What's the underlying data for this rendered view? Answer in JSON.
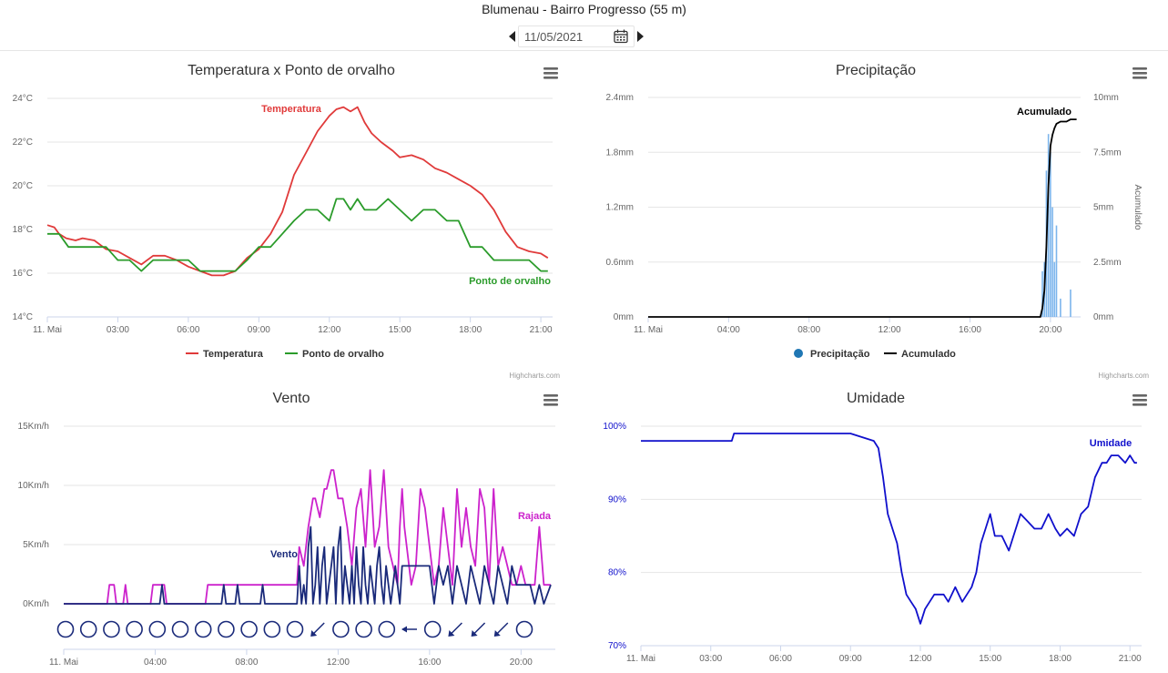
{
  "page": {
    "title": "Blumenau - Bairro Progresso (55 m)",
    "date": "11/05/2021",
    "credit": "Highcharts.com"
  },
  "icons": {
    "prev": "caret-left-icon",
    "next": "caret-right-icon",
    "calendar": "calendar-icon",
    "menu": "hamburger-menu-icon"
  },
  "chart_data": [
    {
      "type": "line",
      "title": "Temperatura x Ponto de orvalho",
      "x_ticks": [
        "11. Mai",
        "03:00",
        "06:00",
        "09:00",
        "12:00",
        "15:00",
        "18:00",
        "21:00"
      ],
      "x_tick_hours": [
        0,
        3,
        6,
        9,
        12,
        15,
        18,
        21
      ],
      "xlim": [
        0,
        21.5
      ],
      "y_ticks": [
        "14°C",
        "16°C",
        "18°C",
        "20°C",
        "22°C",
        "24°C"
      ],
      "ylim": [
        14,
        24
      ],
      "legend": [
        "Temperatura",
        "Ponto de orvalho"
      ],
      "legend_position": "bottom",
      "grid": true,
      "series": [
        {
          "name": "Temperatura",
          "color": "#e03a3a",
          "x": [
            0,
            0.3,
            0.5,
            0.8,
            1.2,
            1.5,
            2,
            2.5,
            3,
            3.5,
            4,
            4.5,
            5,
            5.5,
            6,
            6.5,
            7,
            7.5,
            8,
            8.5,
            9,
            9.5,
            10,
            10.5,
            11,
            11.5,
            12,
            12.3,
            12.6,
            12.9,
            13.2,
            13.5,
            13.8,
            14.2,
            14.7,
            15,
            15.5,
            16,
            16.5,
            17,
            17.5,
            18,
            18.5,
            19,
            19.5,
            20,
            20.5,
            21,
            21.3
          ],
          "y": [
            18.2,
            18.1,
            17.8,
            17.6,
            17.5,
            17.6,
            17.5,
            17.1,
            17,
            16.7,
            16.4,
            16.8,
            16.8,
            16.6,
            16.3,
            16.1,
            15.9,
            15.9,
            16.1,
            16.7,
            17.1,
            17.8,
            18.8,
            20.5,
            21.5,
            22.5,
            23.2,
            23.5,
            23.6,
            23.4,
            23.6,
            22.9,
            22.4,
            22.0,
            21.6,
            21.3,
            21.4,
            21.2,
            20.8,
            20.6,
            20.3,
            20.0,
            19.6,
            18.9,
            17.9,
            17.2,
            17.0,
            16.9,
            16.7
          ]
        },
        {
          "name": "Ponto de orvalho",
          "color": "#2a9b2a",
          "x": [
            0,
            0.5,
            0.9,
            1.5,
            2,
            2.5,
            3,
            3.5,
            4,
            4.5,
            5,
            5.5,
            6,
            6.5,
            7,
            7.5,
            8,
            8.5,
            9,
            9.5,
            10,
            10.5,
            11,
            11.5,
            12,
            12.3,
            12.6,
            12.9,
            13.2,
            13.5,
            14,
            14.5,
            15,
            15.5,
            16,
            16.5,
            17,
            17.5,
            18,
            18.5,
            19,
            19.5,
            20,
            20.5,
            21,
            21.3
          ],
          "y": [
            17.8,
            17.8,
            17.2,
            17.2,
            17.2,
            17.2,
            16.6,
            16.6,
            16.1,
            16.6,
            16.6,
            16.6,
            16.6,
            16.1,
            16.1,
            16.1,
            16.1,
            16.6,
            17.2,
            17.2,
            17.8,
            18.4,
            18.9,
            18.9,
            18.4,
            19.4,
            19.4,
            18.9,
            19.4,
            18.9,
            18.9,
            19.4,
            18.9,
            18.4,
            18.9,
            18.9,
            18.4,
            18.4,
            17.2,
            17.2,
            16.6,
            16.6,
            16.6,
            16.6,
            16.1,
            16.1
          ]
        }
      ],
      "annotations": [
        "Temperatura",
        "Ponto de orvalho"
      ]
    },
    {
      "type": "bar",
      "title": "Precipitação",
      "x_ticks": [
        "11. Mai",
        "04:00",
        "08:00",
        "12:00",
        "16:00",
        "20:00"
      ],
      "x_tick_hours": [
        0,
        4,
        8,
        12,
        16,
        20
      ],
      "xlim": [
        0,
        21.5
      ],
      "y_ticks": [
        "0mm",
        "0.6mm",
        "1.2mm",
        "1.8mm",
        "2.4mm"
      ],
      "ylim": [
        0,
        2.4
      ],
      "y2_ticks": [
        "0mm",
        "2.5mm",
        "5mm",
        "7.5mm",
        "10mm"
      ],
      "y2lim": [
        0,
        10
      ],
      "y2_label": "Acumulado",
      "legend": [
        "Precipitação",
        "Acumulado"
      ],
      "legend_position": "bottom",
      "grid": true,
      "series": [
        {
          "name": "Precipitação",
          "color": "#7cb5ec",
          "x": [
            19.6,
            19.7,
            19.8,
            19.9,
            20.0,
            20.1,
            20.2,
            20.3,
            20.5,
            21.0
          ],
          "values": [
            0.5,
            0.6,
            1.6,
            2.0,
            1.8,
            1.2,
            0.6,
            1.0,
            0.2,
            0.3
          ]
        },
        {
          "name": "Acumulado",
          "color": "#000000",
          "x": [
            0,
            19.5,
            19.6,
            19.7,
            19.8,
            19.9,
            20.0,
            20.1,
            20.2,
            20.3,
            20.5,
            20.8,
            21.0,
            21.3
          ],
          "y": [
            0,
            0,
            0.4,
            1.2,
            3.2,
            6.0,
            7.8,
            8.3,
            8.6,
            8.8,
            8.9,
            8.9,
            9.0,
            9.0
          ]
        }
      ],
      "annotations": [
        "Acumulado"
      ]
    },
    {
      "type": "line",
      "title": "Vento",
      "x_ticks": [
        "11. Mai",
        "04:00",
        "08:00",
        "12:00",
        "16:00",
        "20:00"
      ],
      "x_tick_hours": [
        0,
        4,
        8,
        12,
        16,
        20
      ],
      "xlim": [
        0,
        21.5
      ],
      "y_ticks": [
        "0Km/h",
        "5Km/h",
        "10Km/h",
        "15Km/h"
      ],
      "ylim": [
        0,
        15
      ],
      "grid": true,
      "series": [
        {
          "name": "Rajada",
          "color": "#cc22cc",
          "x": [
            0,
            1.9,
            2.0,
            2.2,
            2.3,
            2.6,
            2.7,
            2.8,
            3.8,
            3.9,
            4.4,
            4.5,
            6.2,
            6.3,
            6.6,
            6.7,
            8.3,
            8.4,
            10.2,
            10.3,
            10.5,
            10.7,
            10.9,
            11.0,
            11.2,
            11.4,
            11.5,
            11.7,
            11.8,
            12.0,
            12.2,
            12.4,
            12.6,
            12.8,
            13.0,
            13.2,
            13.4,
            13.6,
            13.8,
            14.0,
            14.2,
            14.4,
            14.6,
            14.7,
            14.8,
            14.9,
            15.2,
            15.4,
            15.6,
            15.8,
            16.0,
            16.2,
            16.4,
            16.6,
            16.8,
            17.0,
            17.2,
            17.4,
            17.6,
            17.8,
            18.0,
            18.2,
            18.4,
            18.6,
            18.8,
            19.0,
            19.2,
            19.4,
            19.6,
            19.8,
            20.0,
            20.2,
            20.4,
            20.6,
            20.8,
            21.0,
            21.3
          ],
          "y": [
            0,
            0,
            1.6,
            1.6,
            0,
            0,
            1.6,
            0,
            0,
            1.6,
            1.6,
            0,
            0,
            1.6,
            1.6,
            1.6,
            1.6,
            1.6,
            1.6,
            4.8,
            3.2,
            6.5,
            8.9,
            8.9,
            7.3,
            9.7,
            9.7,
            11.3,
            11.3,
            8.9,
            8.9,
            6.5,
            3.2,
            8.1,
            9.7,
            4.8,
            11.3,
            4.8,
            6.5,
            11.3,
            4.8,
            3.2,
            1.6,
            6.5,
            9.7,
            6.5,
            1.6,
            3.2,
            9.7,
            8.1,
            4.8,
            1.6,
            3.2,
            8.1,
            4.8,
            1.6,
            9.7,
            4.8,
            8.1,
            4.8,
            3.2,
            9.7,
            8.1,
            1.6,
            9.7,
            3.2,
            4.8,
            3.2,
            1.6,
            1.6,
            3.2,
            1.6,
            1.6,
            1.6,
            6.5,
            1.6,
            1.6
          ]
        },
        {
          "name": "Vento",
          "color": "#1a2a7a",
          "x": [
            0,
            4.2,
            4.3,
            4.4,
            4.5,
            6.9,
            7.0,
            7.1,
            7.5,
            7.6,
            7.7,
            8.6,
            8.7,
            8.8,
            10.2,
            10.3,
            10.4,
            10.5,
            10.6,
            10.7,
            10.8,
            10.9,
            11.0,
            11.1,
            11.2,
            11.3,
            11.4,
            11.5,
            11.6,
            11.7,
            11.8,
            11.9,
            12.0,
            12.1,
            12.2,
            12.3,
            12.4,
            12.5,
            12.6,
            12.7,
            12.8,
            12.9,
            13.0,
            13.1,
            13.2,
            13.3,
            13.4,
            13.5,
            13.6,
            13.7,
            13.8,
            13.9,
            14.0,
            14.1,
            14.2,
            14.3,
            14.4,
            14.5,
            14.6,
            14.7,
            14.8,
            15.0,
            15.5,
            16.0,
            16.2,
            16.4,
            16.6,
            16.8,
            17.0,
            17.2,
            17.4,
            17.6,
            17.8,
            18.0,
            18.2,
            18.4,
            18.6,
            18.8,
            19.0,
            19.2,
            19.4,
            19.6,
            19.8,
            20.0,
            20.2,
            20.4,
            20.6,
            20.8,
            21.0,
            21.3
          ],
          "y": [
            0,
            0,
            1.6,
            0,
            0,
            0,
            1.6,
            0,
            0,
            1.6,
            0,
            0,
            1.6,
            0,
            0,
            3.2,
            0,
            1.6,
            0,
            4.8,
            6.5,
            0,
            1.6,
            4.8,
            0,
            3.2,
            4.8,
            0,
            1.6,
            3.2,
            4.8,
            0,
            4.8,
            6.5,
            0,
            3.2,
            1.6,
            0,
            3.2,
            0,
            4.8,
            1.6,
            0,
            4.8,
            1.6,
            0,
            3.2,
            1.6,
            0,
            3.2,
            4.8,
            1.6,
            0,
            3.2,
            1.6,
            0,
            1.6,
            3.2,
            1.6,
            0,
            3.2,
            3.2,
            3.2,
            3.2,
            0,
            3.2,
            1.6,
            3.2,
            0,
            3.2,
            1.6,
            0,
            3.2,
            1.6,
            0,
            3.2,
            1.6,
            0,
            3.2,
            1.6,
            0,
            3.2,
            1.6,
            1.6,
            1.6,
            1.6,
            0,
            1.6,
            0,
            1.6
          ]
        }
      ],
      "wind_direction_hours": [
        0,
        1,
        2,
        3,
        4,
        5,
        6,
        7,
        8,
        9,
        10,
        11,
        12,
        13,
        14,
        15,
        16,
        17,
        18,
        19,
        20
      ],
      "wind_directions": [
        "calm",
        "calm",
        "calm",
        "calm",
        "calm",
        "calm",
        "calm",
        "calm",
        "calm",
        "calm",
        "calm",
        "NE",
        "calm",
        "calm",
        "calm",
        "E",
        "calm",
        "NE",
        "NE",
        "NE",
        "calm"
      ],
      "annotations": [
        "Rajada",
        "Vento"
      ]
    },
    {
      "type": "line",
      "title": "Umidade",
      "x_ticks": [
        "11. Mai",
        "03:00",
        "06:00",
        "09:00",
        "12:00",
        "15:00",
        "18:00",
        "21:00"
      ],
      "x_tick_hours": [
        0,
        3,
        6,
        9,
        12,
        15,
        18,
        21
      ],
      "xlim": [
        0,
        21.5
      ],
      "y_ticks": [
        "70%",
        "80%",
        "90%",
        "100%"
      ],
      "ylim": [
        70,
        100
      ],
      "grid": true,
      "series": [
        {
          "name": "Umidade",
          "color": "#1010cc",
          "x": [
            0,
            3.9,
            4.0,
            4.1,
            6,
            9,
            10,
            10.2,
            10.4,
            10.6,
            10.8,
            11.0,
            11.2,
            11.4,
            11.6,
            11.8,
            12.0,
            12.2,
            12.4,
            12.6,
            12.8,
            13.0,
            13.2,
            13.5,
            13.8,
            14.0,
            14.2,
            14.4,
            14.6,
            14.8,
            15.0,
            15.2,
            15.5,
            15.8,
            16.0,
            16.3,
            16.6,
            16.9,
            17.2,
            17.5,
            17.8,
            18.0,
            18.3,
            18.6,
            18.9,
            19.2,
            19.5,
            19.8,
            20.0,
            20.2,
            20.5,
            20.8,
            21.0,
            21.2,
            21.3
          ],
          "y": [
            98,
            98,
            99,
            99,
            99,
            99,
            98,
            97,
            93,
            88,
            86,
            84,
            80,
            77,
            76,
            75,
            73,
            75,
            76,
            77,
            77,
            77,
            76,
            78,
            76,
            77,
            78,
            80,
            84,
            86,
            88,
            85,
            85,
            83,
            85,
            88,
            87,
            86,
            86,
            88,
            86,
            85,
            86,
            85,
            88,
            89,
            93,
            95,
            95,
            96,
            96,
            95,
            96,
            95,
            95
          ]
        }
      ],
      "annotations": [
        "Umidade"
      ]
    }
  ]
}
